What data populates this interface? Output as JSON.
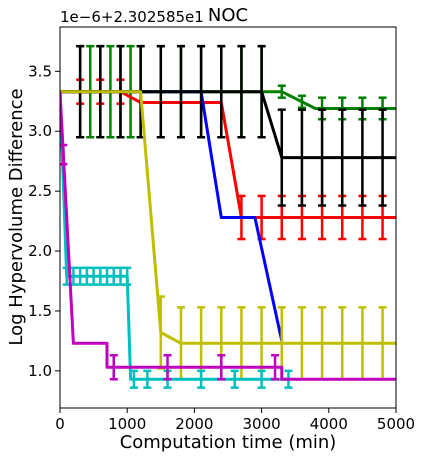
{
  "chart_data": {
    "type": "line",
    "title": "NOC",
    "xlabel": "Computation time (min)",
    "ylabel": "Log Hypervolume Difference",
    "y_offset_label": "1e−6+2.302585e1",
    "xlim": [
      0,
      5000
    ],
    "ylim": [
      0.69,
      3.87
    ],
    "x_ticks": [
      0,
      1000,
      2000,
      3000,
      4000,
      5000
    ],
    "x_tick_labels": [
      "0",
      "1000",
      "2000",
      "3000",
      "4000",
      "5000"
    ],
    "y_ticks": [
      1.0,
      1.5,
      2.0,
      2.5,
      3.0,
      3.5
    ],
    "y_tick_labels": [
      "1.0",
      "1.5",
      "2.0",
      "2.5",
      "3.0",
      "3.5"
    ],
    "grid": false,
    "legend": "none",
    "series": [
      {
        "color": "#008000",
        "points": [
          [
            0,
            3.33
          ],
          [
            3300,
            3.33
          ],
          [
            3800,
            3.19
          ],
          [
            5000,
            3.19
          ]
        ],
        "error_x": [
          300,
          450,
          600,
          750,
          900,
          1050,
          1200,
          1500,
          1800,
          2100,
          2400,
          2700,
          3000,
          3300,
          3600,
          3900,
          4200,
          4500,
          4800
        ],
        "error_half": [
          0.38,
          0.38,
          0.38,
          0.38,
          0.38,
          0.38,
          0.38,
          0.38,
          0.38,
          0.38,
          0.38,
          0.38,
          0.38,
          0.05,
          0.05,
          0.09,
          0.09,
          0.09,
          0.09
        ]
      },
      {
        "color": "#ff0000",
        "points": [
          [
            0,
            3.33
          ],
          [
            900,
            3.33
          ],
          [
            1200,
            3.24
          ],
          [
            2400,
            3.24
          ],
          [
            2700,
            2.28
          ],
          [
            5000,
            2.28
          ]
        ],
        "error_x": [
          300,
          600,
          900,
          2700,
          3000,
          3300,
          3600,
          3900,
          4200,
          4500,
          4800
        ],
        "error_half": [
          0.1,
          0.1,
          0.1,
          0.18,
          0.18,
          0.18,
          0.18,
          0.18,
          0.18,
          0.18,
          0.18
        ]
      },
      {
        "color": "#0000ff",
        "points": [
          [
            0,
            3.33
          ],
          [
            2100,
            3.33
          ],
          [
            2400,
            2.28
          ],
          [
            2900,
            2.28
          ],
          [
            3300,
            1.25
          ]
        ],
        "error_x": [],
        "error_half": []
      },
      {
        "color": "#000000",
        "points": [
          [
            0,
            3.33
          ],
          [
            3000,
            3.33
          ],
          [
            3300,
            2.78
          ],
          [
            5000,
            2.78
          ]
        ],
        "error_x": [
          300,
          600,
          900,
          1200,
          1500,
          1800,
          2100,
          2400,
          2700,
          3000,
          3300,
          3600,
          3900,
          4200,
          4500,
          4800
        ],
        "error_half": [
          0.38,
          0.38,
          0.38,
          0.38,
          0.38,
          0.38,
          0.38,
          0.38,
          0.38,
          0.38,
          0.4,
          0.4,
          0.4,
          0.4,
          0.4,
          0.4
        ]
      },
      {
        "color": "#bfbf00",
        "points": [
          [
            0,
            3.33
          ],
          [
            1200,
            3.33
          ],
          [
            1500,
            1.32
          ],
          [
            1800,
            1.23
          ],
          [
            5000,
            1.23
          ]
        ],
        "error_x": [
          1500,
          1800,
          2100,
          2400,
          2700,
          3000,
          3300,
          3600,
          3900,
          4200,
          4500,
          4800
        ],
        "error_half": [
          0.3,
          0.3,
          0.3,
          0.3,
          0.3,
          0.3,
          0.3,
          0.3,
          0.3,
          0.3,
          0.3,
          0.3
        ]
      },
      {
        "color": "#00bfbf",
        "points": [
          [
            0,
            3.33
          ],
          [
            100,
            1.79
          ],
          [
            1000,
            1.79
          ],
          [
            1050,
            0.93
          ],
          [
            3400,
            0.93
          ]
        ],
        "error_x": [
          100,
          200,
          300,
          400,
          500,
          600,
          700,
          800,
          900,
          1000,
          1100,
          1300,
          1600,
          2100,
          2600,
          3000,
          3400
        ],
        "error_half": [
          0.07,
          0.07,
          0.07,
          0.07,
          0.07,
          0.07,
          0.07,
          0.07,
          0.07,
          0.07,
          0.07,
          0.07,
          0.07,
          0.07,
          0.07,
          0.07,
          0.07
        ]
      },
      {
        "color": "#bf00bf",
        "points": [
          [
            0,
            3.33
          ],
          [
            200,
            1.23
          ],
          [
            700,
            1.23
          ],
          [
            700,
            1.03
          ],
          [
            3300,
            1.03
          ],
          [
            3300,
            0.93
          ],
          [
            5000,
            0.93
          ]
        ],
        "error_x": [
          50,
          800,
          1600,
          2400,
          3200
        ],
        "error_half": [
          0.08,
          0.1,
          0.1,
          0.1,
          0.1
        ]
      }
    ]
  }
}
